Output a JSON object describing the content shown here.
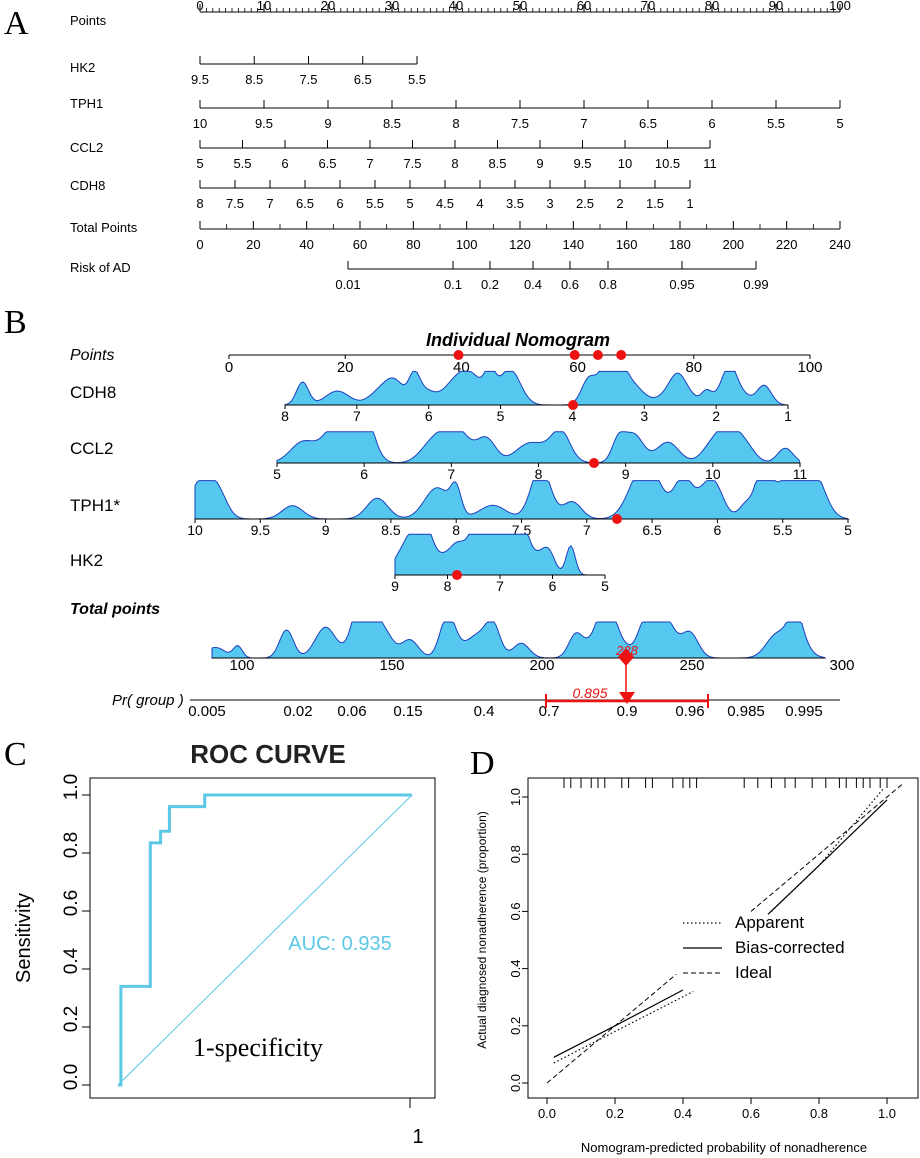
{
  "panels": {
    "a": {
      "letter": "A",
      "rows": [
        {
          "label": "Points",
          "ticks": [
            "0",
            "10",
            "20",
            "30",
            "40",
            "50",
            "60",
            "70",
            "80",
            "90",
            "100"
          ]
        },
        {
          "label": "HK2",
          "ticks": [
            "9.5",
            "8.5",
            "7.5",
            "6.5",
            "5.5"
          ]
        },
        {
          "label": "TPH1",
          "ticks": [
            "10",
            "9.5",
            "9",
            "8.5",
            "8",
            "7.5",
            "7",
            "6.5",
            "6",
            "5.5",
            "5"
          ]
        },
        {
          "label": "CCL2",
          "ticks": [
            "5",
            "5.5",
            "6",
            "6.5",
            "7",
            "7.5",
            "8",
            "8.5",
            "9",
            "9.5",
            "10",
            "10.5",
            "11"
          ]
        },
        {
          "label": "CDH8",
          "ticks": [
            "8",
            "7.5",
            "7",
            "6.5",
            "6",
            "5.5",
            "5",
            "4.5",
            "4",
            "3.5",
            "3",
            "2.5",
            "2",
            "1.5",
            "1"
          ]
        },
        {
          "label": "Total Points",
          "ticks": [
            "0",
            "20",
            "40",
            "60",
            "80",
            "100",
            "120",
            "140",
            "160",
            "180",
            "200",
            "220",
            "240"
          ]
        },
        {
          "label": "Risk of AD",
          "ticks": [
            "0.01",
            "0.1",
            "0.2",
            "0.4",
            "0.6",
            "0.8",
            "0.95",
            "0.99"
          ]
        }
      ]
    },
    "b": {
      "letter": "B",
      "title": "Individual Nomogram",
      "points_label": "Points",
      "points_ticks": [
        "0",
        "20",
        "40",
        "60",
        "80",
        "100"
      ],
      "selected_points": [
        39.5,
        59.5,
        63.5,
        67.5
      ],
      "rows": [
        {
          "label": "CDH8",
          "ticks": [
            "8",
            "7",
            "6",
            "5",
            "4",
            "3",
            "2",
            "1"
          ],
          "selected": "4"
        },
        {
          "label": "CCL2",
          "ticks": [
            "5",
            "6",
            "7",
            "8",
            "9",
            "10",
            "11"
          ],
          "selected": "8.7"
        },
        {
          "label": "TPH1*",
          "ticks": [
            "10",
            "9.5",
            "9",
            "8.5",
            "8",
            "7.5",
            "7",
            "6.5",
            "6",
            "5.5",
            "5"
          ],
          "selected": "6.8"
        },
        {
          "label": "HK2",
          "ticks": [
            "9",
            "8",
            "7",
            "6",
            "5"
          ],
          "selected": "8"
        }
      ],
      "total_label": "Total points",
      "total_ticks": [
        "100",
        "150",
        "200",
        "250",
        "300"
      ],
      "total_value": "228",
      "pr_label": "Pr( group )",
      "pr_ticks": [
        "0.005",
        "0.02",
        "0.06",
        "0.15",
        "0.4",
        "0.7",
        "0.9",
        "0.96",
        "0.985",
        "0.995"
      ],
      "pr_value": "0.895"
    },
    "c": {
      "letter": "C"
    },
    "d": {
      "letter": "D"
    }
  },
  "chart_data": [
    {
      "type": "line",
      "title": "ROC CURVE",
      "ylabel": "Sensitivity",
      "xlabel_annotation": "1-specificity",
      "auc_label": "AUC: 0.935",
      "x_tick_label": "1",
      "y_ticks": [
        "0.0",
        "0.2",
        "0.4",
        "0.6",
        "0.8",
        "1.0"
      ],
      "ylim": [
        0,
        1
      ],
      "xlim": [
        0,
        1
      ],
      "curve_color": "#5bc8e6",
      "series": [
        {
          "name": "ROC",
          "points": [
            [
              0.0,
              0.0
            ],
            [
              0.01,
              0.0
            ],
            [
              0.01,
              0.34
            ],
            [
              0.11,
              0.34
            ],
            [
              0.11,
              0.835
            ],
            [
              0.145,
              0.835
            ],
            [
              0.145,
              0.875
            ],
            [
              0.175,
              0.875
            ],
            [
              0.175,
              0.91
            ],
            [
              0.175,
              0.96
            ],
            [
              0.295,
              0.96
            ],
            [
              0.295,
              1.0
            ],
            [
              1.0,
              1.0
            ]
          ]
        },
        {
          "name": "Reference",
          "points": [
            [
              0.0,
              0.0
            ],
            [
              1.0,
              1.0
            ]
          ]
        }
      ]
    },
    {
      "type": "line",
      "xlabel": "Nomogram-predicted probability of nonadherence",
      "ylabel": "Actual diagnosed nonadherence (proportion)",
      "x_ticks": [
        "0.0",
        "0.2",
        "0.4",
        "0.6",
        "0.8",
        "1.0"
      ],
      "y_ticks": [
        "0.0",
        "0.2",
        "0.4",
        "0.6",
        "0.8",
        "1.0"
      ],
      "xlim": [
        0,
        1.05
      ],
      "ylim": [
        0,
        1.05
      ],
      "legend": [
        "Apparent",
        "Bias-corrected",
        "Ideal"
      ],
      "legend_position": "center-right",
      "series": [
        {
          "name": "Apparent",
          "segments": [
            [
              [
                0.02,
                0.07
              ],
              [
                0.2,
                0.18
              ],
              [
                0.43,
                0.32
              ]
            ],
            [
              [
                0.66,
                0.6
              ],
              [
                0.8,
                0.76
              ],
              [
                0.99,
                1.03
              ]
            ]
          ]
        },
        {
          "name": "Bias-corrected",
          "segments": [
            [
              [
                0.02,
                0.09
              ],
              [
                0.2,
                0.2
              ],
              [
                0.4,
                0.325
              ]
            ],
            [
              [
                0.65,
                0.59
              ],
              [
                0.8,
                0.76
              ],
              [
                1.0,
                0.99
              ]
            ]
          ]
        },
        {
          "name": "Ideal",
          "segments": [
            [
              [
                0.0,
                0.0
              ],
              [
                0.38,
                0.38
              ]
            ],
            [
              [
                0.6,
                0.6
              ],
              [
                1.05,
                1.05
              ]
            ]
          ]
        }
      ],
      "rug_top": [
        0.05,
        0.07,
        0.1,
        0.13,
        0.15,
        0.17,
        0.22,
        0.24,
        0.29,
        0.31,
        0.37,
        0.4,
        0.42,
        0.44,
        0.58,
        0.62,
        0.66,
        0.7,
        0.73,
        0.78,
        0.82,
        0.86,
        0.88,
        0.91,
        0.93,
        0.95,
        0.98,
        1.0
      ]
    }
  ]
}
